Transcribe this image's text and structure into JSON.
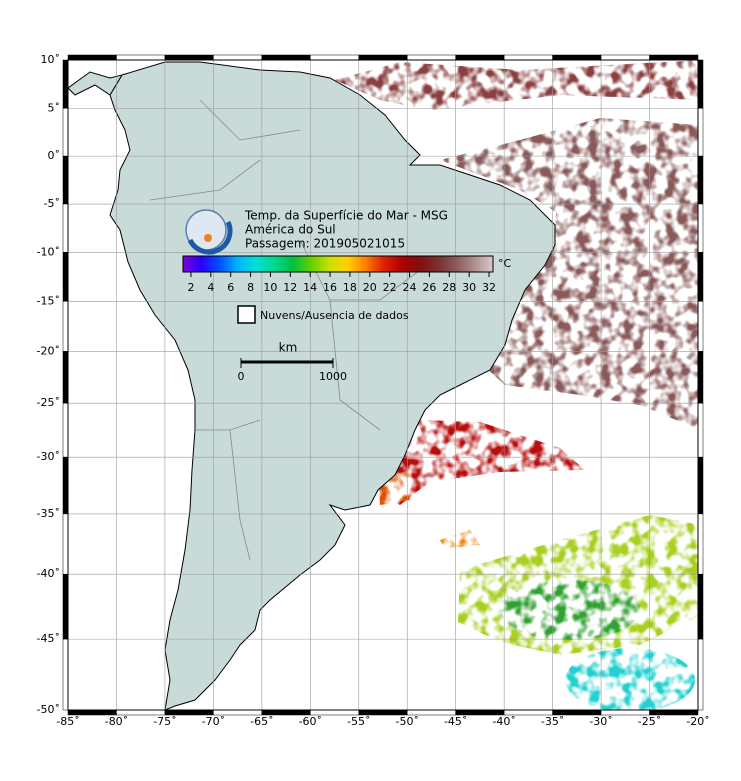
{
  "header": {
    "title": "Temp. da Superfície do Mar - MSG",
    "region": "América do Sul",
    "pass": "Passagem: 201905021015"
  },
  "map": {
    "xlim": [
      -85,
      -20
    ],
    "ylim": [
      -50,
      10
    ],
    "xticks": [
      {
        "value": -85,
        "label": "-85˚"
      },
      {
        "value": -80,
        "label": "-80˚"
      },
      {
        "value": -75,
        "label": "-75˚"
      },
      {
        "value": -70,
        "label": "-70˚"
      },
      {
        "value": -65,
        "label": "-65˚"
      },
      {
        "value": -60,
        "label": "-60˚"
      },
      {
        "value": -55,
        "label": "-55˚"
      },
      {
        "value": -50,
        "label": "-50˚"
      },
      {
        "value": -45,
        "label": "-45˚"
      },
      {
        "value": -40,
        "label": "-40˚"
      },
      {
        "value": -35,
        "label": "-35˚"
      },
      {
        "value": -30,
        "label": "-30˚"
      },
      {
        "value": -25,
        "label": "-25˚"
      },
      {
        "value": -20,
        "label": "-20˚"
      }
    ],
    "yticks": [
      {
        "value": 10,
        "label": "10˚"
      },
      {
        "value": 5,
        "label": "5˚"
      },
      {
        "value": 0,
        "label": "0˚"
      },
      {
        "value": -5,
        "label": "-5˚"
      },
      {
        "value": -10,
        "label": "-10˚"
      },
      {
        "value": -15,
        "label": "-15˚"
      },
      {
        "value": -20,
        "label": "-20˚"
      },
      {
        "value": -25,
        "label": "-25˚"
      },
      {
        "value": -30,
        "label": "-30˚"
      },
      {
        "value": -35,
        "label": "-35˚"
      },
      {
        "value": -40,
        "label": "-40˚"
      },
      {
        "value": -45,
        "label": "-45˚"
      },
      {
        "value": -50,
        "label": "-50˚"
      }
    ]
  },
  "colorbar": {
    "unit": "°C",
    "clim": [
      1.2,
      32.4
    ],
    "ticks": [
      2,
      4,
      6,
      8,
      10,
      12,
      14,
      16,
      18,
      20,
      22,
      24,
      26,
      28,
      30,
      32
    ],
    "colors": [
      "#7a00d8",
      "#2a00ff",
      "#0050ff",
      "#00b4ff",
      "#00e0d8",
      "#00d890",
      "#00c040",
      "#60d000",
      "#c8e000",
      "#ffd000",
      "#ff8000",
      "#e02000",
      "#b00000",
      "#801010",
      "#7a3030",
      "#8a5a5a",
      "#b09090",
      "#d8c8c8"
    ]
  },
  "legend": {
    "no_data": "Nuvens/Ausencia de dados"
  },
  "scale_bar": {
    "unit": "km",
    "ticks": [
      0,
      1000
    ]
  }
}
